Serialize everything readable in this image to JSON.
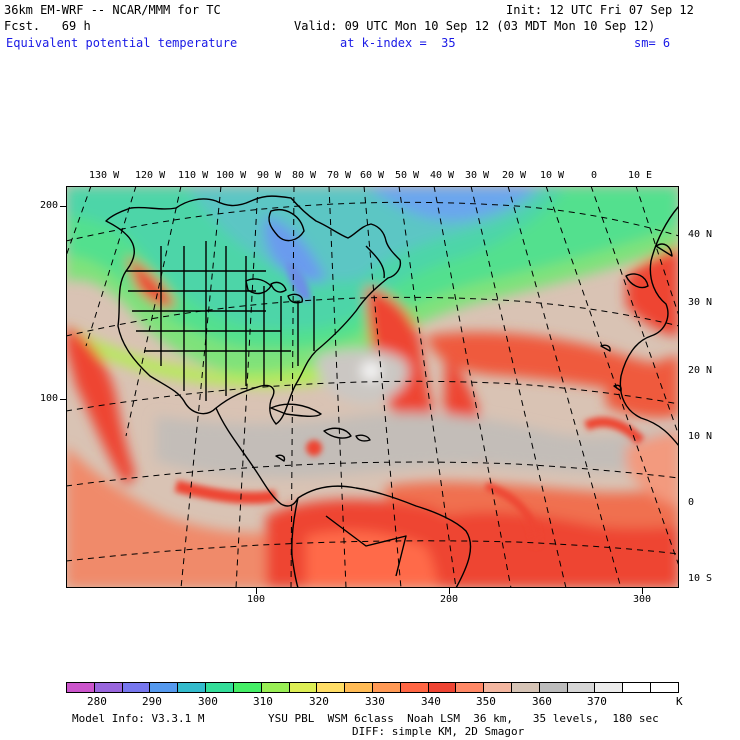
{
  "header": {
    "model": "36km EM-WRF -- NCAR/MMM for TC",
    "fcst": "Fcst.   69 h",
    "init": "Init: 12 UTC Fri 07 Sep 12",
    "valid": "Valid: 09 UTC Mon 10 Sep 12 (03 MDT Mon 10 Sep 12)",
    "field": "Equivalent potential temperature",
    "level": "at k-index =  35",
    "smoothing": "sm= 6"
  },
  "map": {
    "lon_labels": [
      "130 W",
      "120 W",
      "110 W",
      "100 W",
      "90 W",
      "80 W",
      "70 W",
      "60 W",
      "50 W",
      "40 W",
      "30 W",
      "20 W",
      "10 W",
      "0",
      "10 E"
    ],
    "lat_labels": [
      "40 N",
      "30 N",
      "20 N",
      "10 N",
      "0",
      "10 S"
    ],
    "y_grid_labels": [
      "200",
      "100"
    ],
    "x_grid_labels": [
      "100",
      "200",
      "300"
    ]
  },
  "colorbar": {
    "labels": [
      "280",
      "290",
      "300",
      "310",
      "320",
      "330",
      "340",
      "350",
      "360",
      "370"
    ],
    "unit": "K",
    "colors": [
      "#cc55cc",
      "#9966dd",
      "#7777ee",
      "#5599ee",
      "#33bbcc",
      "#33dd99",
      "#44ee66",
      "#99ee55",
      "#ddee55",
      "#ffdd66",
      "#ffbb55",
      "#ff9955",
      "#ff6644",
      "#ee4433",
      "#ff8866",
      "#f3b6a0",
      "#d6c4b6",
      "#bcbcbc",
      "#d6d6d6",
      "#ececec",
      "#ffffff",
      "#ffffff"
    ]
  },
  "footer": {
    "model_info": "Model Info: V3.3.1 M",
    "physics": "YSU PBL  WSM 6class  Noah LSM  36 km,   35 levels,  180 sec",
    "diffusion": "DIFF: simple KM, 2D Smagor"
  }
}
